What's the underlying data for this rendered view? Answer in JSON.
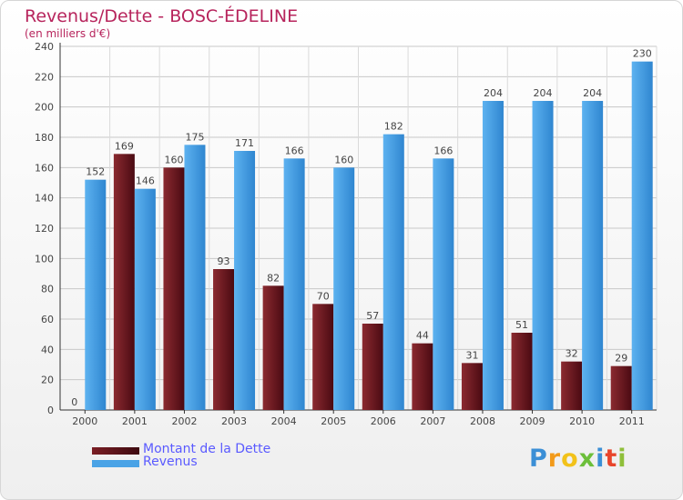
{
  "chart_data": {
    "type": "bar",
    "title": "Revenus/Dette - BOSC-ÉDELINE",
    "subtitle": "(en milliers d'€)",
    "categories": [
      "2000",
      "2001",
      "2002",
      "2003",
      "2004",
      "2005",
      "2006",
      "2007",
      "2008",
      "2009",
      "2010",
      "2011"
    ],
    "series": [
      {
        "name": "Montant de la Dette",
        "color": "#7a1e24",
        "values": [
          0,
          169,
          160,
          93,
          82,
          70,
          57,
          44,
          31,
          51,
          32,
          29
        ]
      },
      {
        "name": "Revenus",
        "color": "#4aa3e6",
        "values": [
          152,
          146,
          175,
          171,
          166,
          160,
          182,
          166,
          204,
          204,
          204,
          230
        ]
      }
    ],
    "ylim": [
      0,
      240
    ],
    "yticks": [
      0,
      20,
      40,
      60,
      80,
      100,
      120,
      140,
      160,
      180,
      200,
      220,
      240
    ],
    "grid": true,
    "legend_position": "bottom-left",
    "xlabel": "",
    "ylabel": ""
  },
  "legend": {
    "debt_label": "Montant de la Dette",
    "revenue_label": "Revenus",
    "text_color": "#5a5aff"
  },
  "logo": {
    "letters": [
      "P",
      "r",
      "o",
      "x",
      "i",
      "t",
      "i"
    ],
    "colors": [
      "#3b8fd6",
      "#f29a1a",
      "#f2c21a",
      "#6cbf3a",
      "#3b8fd6",
      "#e8452c",
      "#8fbf3a"
    ]
  }
}
